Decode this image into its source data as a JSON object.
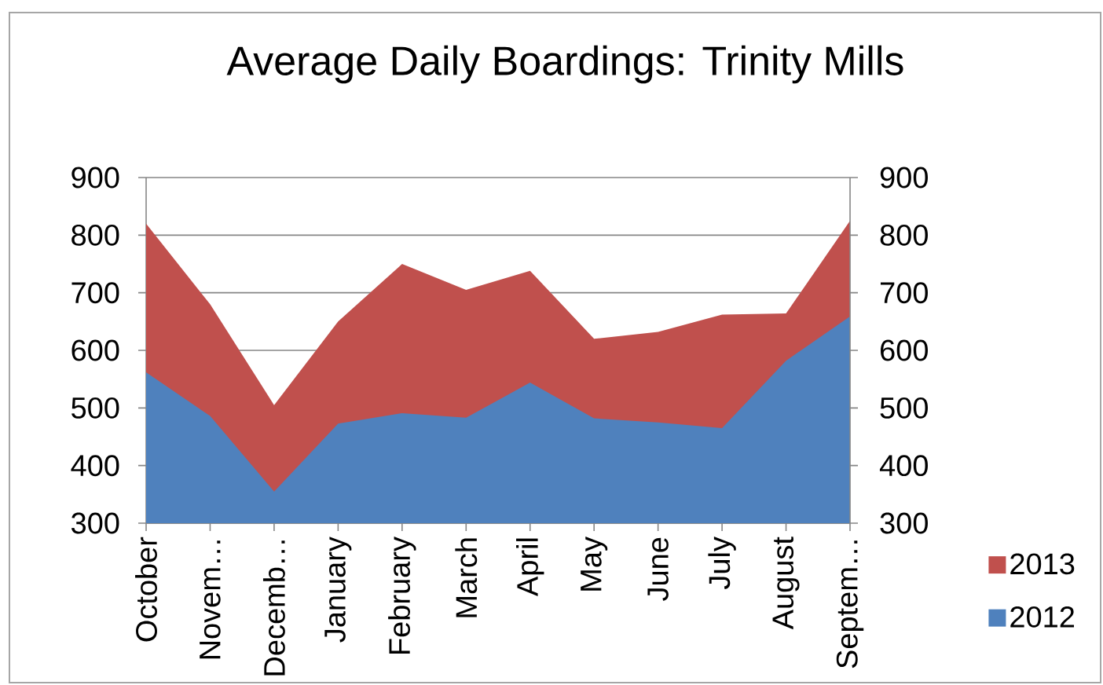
{
  "chart_data": {
    "type": "area",
    "title": "Average Daily Boardings: Trinity Mills",
    "categories": [
      "October",
      "Novem…",
      "Decemb…",
      "January",
      "February",
      "March",
      "April",
      "May",
      "June",
      "July",
      "August",
      "Septem…"
    ],
    "series": [
      {
        "name": "2013",
        "color": "#c0504d",
        "values": [
          820,
          680,
          505,
          650,
          750,
          705,
          738,
          620,
          632,
          662,
          664,
          825
        ]
      },
      {
        "name": "2012",
        "color": "#4f81bd",
        "values": [
          562,
          486,
          355,
          473,
          491,
          483,
          544,
          482,
          475,
          465,
          582,
          659
        ]
      }
    ],
    "ylim": [
      300,
      900
    ],
    "yticks": [
      300,
      400,
      500,
      600,
      700,
      800,
      900
    ],
    "y2lim": [
      300,
      900
    ],
    "y2ticks": [
      300,
      400,
      500,
      600,
      700,
      800,
      900
    ],
    "grid": "y",
    "legend": "bottom right"
  }
}
